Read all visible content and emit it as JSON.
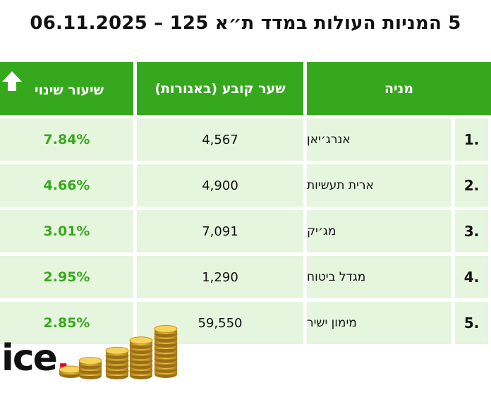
{
  "title": "5 המניות העולות במדד ת״א 125 – 06.11.2025",
  "headers": {
    "change": "שיעור שינוי",
    "price": "שער קובע (באגורות)",
    "stock": "מניה"
  },
  "logo": {
    "text": "ice",
    "dot": "."
  },
  "colors": {
    "header": "#36a81d",
    "row": "#e6f5dd",
    "change_text": "#36a81d"
  },
  "icons": {
    "header_change": "up-arrow-icon",
    "decoration": "gold-coins-stack"
  },
  "chart_data": {
    "type": "table",
    "title": "5 המניות העולות במדד ת״א 125 – 06.11.2025",
    "columns": [
      "מניה",
      "שער קובע (באגורות)",
      "שיעור שינוי"
    ],
    "rows": [
      {
        "rank": "1.",
        "name": "אנרג׳יאן",
        "price": "4,567",
        "change": "7.84%"
      },
      {
        "rank": "2.",
        "name": "ארית תעשיות",
        "price": "4,900",
        "change": "4.66%"
      },
      {
        "rank": "3.",
        "name": "מג׳יק",
        "price": "7,091",
        "change": "3.01%"
      },
      {
        "rank": "4.",
        "name": "מגדל ביטוח",
        "price": "1,290",
        "change": "2.95%"
      },
      {
        "rank": "5.",
        "name": "מימון ישיר",
        "price": "59,550",
        "change": "2.85%"
      }
    ]
  }
}
